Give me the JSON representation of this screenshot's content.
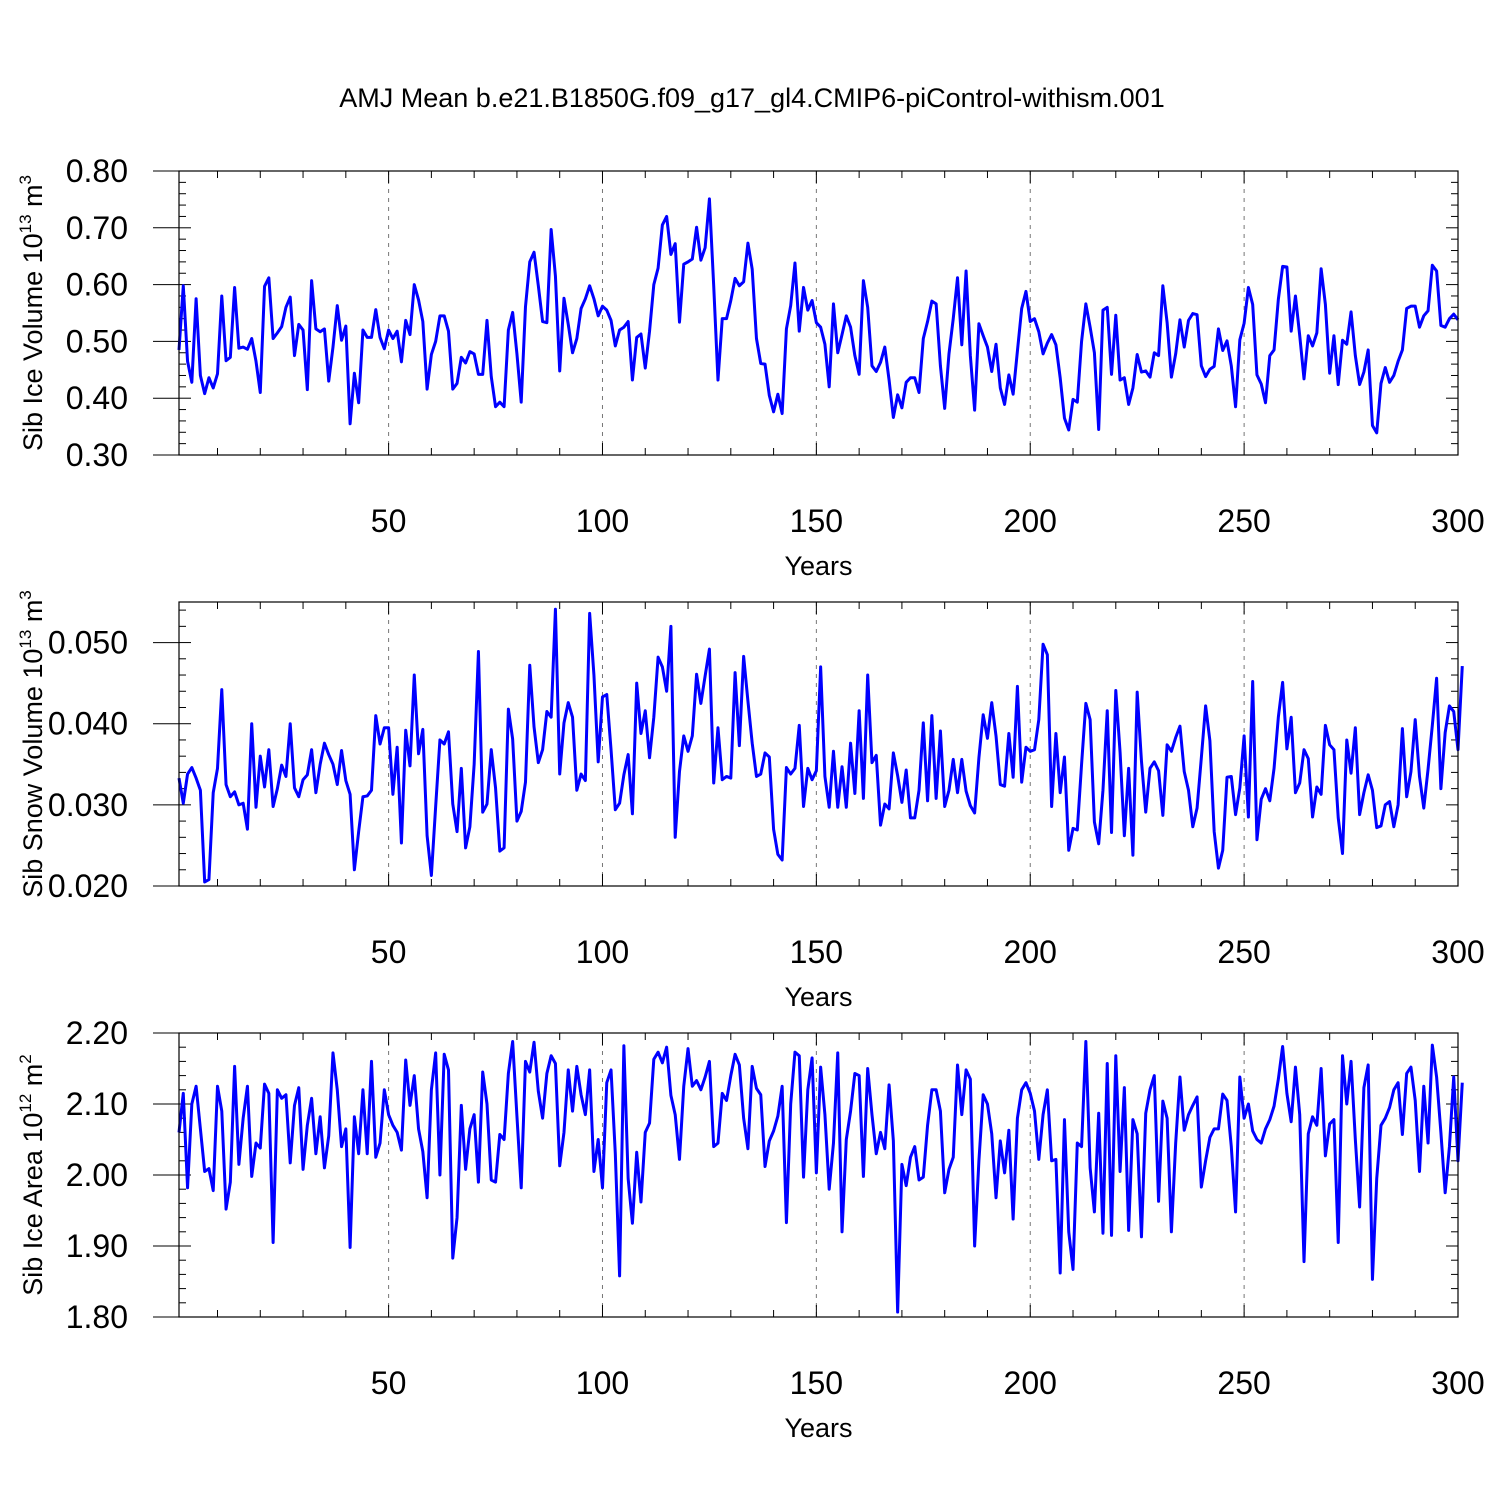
{
  "page": {
    "title": "AMJ Mean b.e21.B1850G.f09_g17_gl4.CMIP6-piControl-withism.001",
    "line_color": "#0000ff"
  },
  "chart_data": [
    {
      "type": "line",
      "ylabel": {
        "base": "Sib Ice Volume 10",
        "exp": "13",
        "unit": " m",
        "unit_exp": "3"
      },
      "xlabel": "Years",
      "xlim": [
        1,
        300
      ],
      "ylim": [
        0.3,
        0.8
      ],
      "xticks": [
        50,
        100,
        150,
        200,
        250,
        300
      ],
      "yticks": [
        0.3,
        0.4,
        0.5,
        0.6,
        0.7,
        0.8
      ],
      "ytick_labels": [
        "0.30",
        "0.40",
        "0.50",
        "0.60",
        "0.70",
        "0.80"
      ],
      "grid": "dashed vertical at x ticks",
      "series": [
        {
          "x_start": 1,
          "values": [
            0.485,
            0.598,
            0.465,
            0.428,
            0.575,
            0.44,
            0.408,
            0.436,
            0.418,
            0.443,
            0.58,
            0.466,
            0.472,
            0.595,
            0.488,
            0.49,
            0.486,
            0.505,
            0.465,
            0.41,
            0.597,
            0.612,
            0.505,
            0.515,
            0.526,
            0.56,
            0.578,
            0.475,
            0.53,
            0.52,
            0.415,
            0.607,
            0.522,
            0.517,
            0.522,
            0.43,
            0.49,
            0.563,
            0.502,
            0.527,
            0.355,
            0.444,
            0.392,
            0.52,
            0.507,
            0.507,
            0.556,
            0.507,
            0.487,
            0.52,
            0.505,
            0.518,
            0.464,
            0.537,
            0.512,
            0.6,
            0.573,
            0.535,
            0.416,
            0.477,
            0.5,
            0.545,
            0.545,
            0.518,
            0.416,
            0.426,
            0.472,
            0.462,
            0.482,
            0.478,
            0.442,
            0.442,
            0.537,
            0.438,
            0.385,
            0.393,
            0.385,
            0.52,
            0.551,
            0.478,
            0.393,
            0.561,
            0.64,
            0.657,
            0.598,
            0.535,
            0.533,
            0.697,
            0.615,
            0.448,
            0.576,
            0.53,
            0.48,
            0.505,
            0.558,
            0.575,
            0.598,
            0.575,
            0.545,
            0.562,
            0.555,
            0.537,
            0.492,
            0.52,
            0.525,
            0.535,
            0.432,
            0.507,
            0.513,
            0.453,
            0.518,
            0.6,
            0.629,
            0.705,
            0.72,
            0.653,
            0.672,
            0.534,
            0.636,
            0.64,
            0.645,
            0.701,
            0.643,
            0.665,
            0.751,
            0.598,
            0.432,
            0.54,
            0.54,
            0.572,
            0.611,
            0.598,
            0.605,
            0.673,
            0.627,
            0.505,
            0.461,
            0.46,
            0.405,
            0.376,
            0.407,
            0.373,
            0.522,
            0.563,
            0.638,
            0.518,
            0.595,
            0.555,
            0.572,
            0.533,
            0.525,
            0.495,
            0.42,
            0.566,
            0.48,
            0.512,
            0.545,
            0.525,
            0.475,
            0.442,
            0.607,
            0.56,
            0.457,
            0.447,
            0.463,
            0.49,
            0.432,
            0.366,
            0.406,
            0.383,
            0.428,
            0.436,
            0.436,
            0.41,
            0.505,
            0.535,
            0.571,
            0.566,
            0.457,
            0.382,
            0.478,
            0.54,
            0.612,
            0.494,
            0.624,
            0.475,
            0.379,
            0.531,
            0.51,
            0.49,
            0.447,
            0.495,
            0.418,
            0.389,
            0.441,
            0.407,
            0.483,
            0.558,
            0.588,
            0.535,
            0.54,
            0.517,
            0.478,
            0.497,
            0.512,
            0.494,
            0.436,
            0.365,
            0.344,
            0.398,
            0.393,
            0.5,
            0.566,
            0.525,
            0.48,
            0.345,
            0.555,
            0.56,
            0.442,
            0.546,
            0.432,
            0.436,
            0.389,
            0.418,
            0.477,
            0.446,
            0.448,
            0.437,
            0.48,
            0.475,
            0.598,
            0.533,
            0.437,
            0.478,
            0.538,
            0.49,
            0.537,
            0.549,
            0.547,
            0.457,
            0.438,
            0.451,
            0.456,
            0.522,
            0.484,
            0.501,
            0.457,
            0.385,
            0.503,
            0.532,
            0.595,
            0.565,
            0.441,
            0.425,
            0.392,
            0.475,
            0.485,
            0.574,
            0.632,
            0.631,
            0.518,
            0.58,
            0.51,
            0.434,
            0.51,
            0.492,
            0.515,
            0.628,
            0.565,
            0.444,
            0.51,
            0.424,
            0.502,
            0.495,
            0.552,
            0.475,
            0.424,
            0.446,
            0.485,
            0.352,
            0.339,
            0.426,
            0.454,
            0.428,
            0.44,
            0.465,
            0.485,
            0.558,
            0.562,
            0.562,
            0.525,
            0.545,
            0.554,
            0.634,
            0.624,
            0.528,
            0.525,
            0.54,
            0.548,
            0.538
          ]
        }
      ]
    },
    {
      "type": "line",
      "ylabel": {
        "base": "Sib Snow Volume 10",
        "exp": "13",
        "unit": " m",
        "unit_exp": "3"
      },
      "xlabel": "Years",
      "xlim": [
        1,
        300
      ],
      "ylim": [
        0.02,
        0.055
      ],
      "xticks": [
        50,
        100,
        150,
        200,
        250,
        300
      ],
      "yticks": [
        0.02,
        0.03,
        0.04,
        0.05
      ],
      "ytick_labels": [
        "0.020",
        "0.030",
        "0.040",
        "0.050"
      ],
      "grid": "dashed vertical at x ticks",
      "series": [
        {
          "x_start": 1,
          "values": [
            0.0333,
            0.0302,
            0.0338,
            0.0346,
            0.0333,
            0.0318,
            0.0205,
            0.0208,
            0.0315,
            0.0345,
            0.0442,
            0.0325,
            0.031,
            0.0316,
            0.03,
            0.0302,
            0.027,
            0.04,
            0.0297,
            0.036,
            0.0322,
            0.0368,
            0.0298,
            0.032,
            0.0349,
            0.0335,
            0.04,
            0.0321,
            0.031,
            0.0331,
            0.0337,
            0.0368,
            0.0315,
            0.035,
            0.0376,
            0.0362,
            0.035,
            0.0325,
            0.0367,
            0.033,
            0.0313,
            0.022,
            0.0267,
            0.031,
            0.0311,
            0.0318,
            0.041,
            0.0375,
            0.0395,
            0.0395,
            0.0313,
            0.0371,
            0.0253,
            0.0392,
            0.0348,
            0.046,
            0.0363,
            0.0393,
            0.0262,
            0.0213,
            0.0298,
            0.038,
            0.0375,
            0.039,
            0.0301,
            0.0267,
            0.0345,
            0.0247,
            0.0273,
            0.035,
            0.0489,
            0.0291,
            0.0301,
            0.0368,
            0.0321,
            0.0243,
            0.0247,
            0.0418,
            0.0381,
            0.028,
            0.0292,
            0.0328,
            0.0472,
            0.0396,
            0.0352,
            0.0368,
            0.0415,
            0.0408,
            0.0541,
            0.0338,
            0.0401,
            0.0426,
            0.0408,
            0.0318,
            0.0338,
            0.033,
            0.0536,
            0.046,
            0.0353,
            0.0433,
            0.0436,
            0.0368,
            0.0294,
            0.0302,
            0.0337,
            0.0362,
            0.0289,
            0.045,
            0.0388,
            0.0416,
            0.0358,
            0.0408,
            0.0482,
            0.047,
            0.044,
            0.052,
            0.026,
            0.0341,
            0.0385,
            0.0366,
            0.0385,
            0.0461,
            0.0425,
            0.0459,
            0.0492,
            0.0327,
            0.0395,
            0.0331,
            0.0335,
            0.0333,
            0.0463,
            0.0373,
            0.0483,
            0.0428,
            0.0376,
            0.0335,
            0.0338,
            0.0364,
            0.0359,
            0.027,
            0.0239,
            0.0232,
            0.0346,
            0.0338,
            0.0345,
            0.0398,
            0.0298,
            0.0345,
            0.0331,
            0.0342,
            0.047,
            0.0335,
            0.0297,
            0.0366,
            0.0297,
            0.0347,
            0.0297,
            0.0376,
            0.0314,
            0.0416,
            0.0308,
            0.046,
            0.0352,
            0.0361,
            0.0275,
            0.0301,
            0.0295,
            0.0364,
            0.0336,
            0.0303,
            0.0343,
            0.0284,
            0.0284,
            0.0318,
            0.0401,
            0.0305,
            0.041,
            0.0308,
            0.0391,
            0.0298,
            0.0318,
            0.0356,
            0.0315,
            0.0356,
            0.0317,
            0.0299,
            0.029,
            0.0358,
            0.0411,
            0.0382,
            0.0426,
            0.0385,
            0.0325,
            0.0323,
            0.0388,
            0.0334,
            0.0446,
            0.0328,
            0.0371,
            0.0366,
            0.0368,
            0.0405,
            0.0498,
            0.0485,
            0.0298,
            0.0388,
            0.0315,
            0.0359,
            0.0244,
            0.0271,
            0.0269,
            0.035,
            0.0425,
            0.0405,
            0.0279,
            0.0252,
            0.0318,
            0.0416,
            0.0266,
            0.0441,
            0.0365,
            0.0262,
            0.0345,
            0.0238,
            0.0439,
            0.0354,
            0.0291,
            0.0345,
            0.0353,
            0.0342,
            0.0287,
            0.0374,
            0.0366,
            0.0383,
            0.0397,
            0.0341,
            0.0318,
            0.0273,
            0.0296,
            0.0358,
            0.0422,
            0.0379,
            0.0267,
            0.0222,
            0.0244,
            0.0334,
            0.0335,
            0.0288,
            0.0321,
            0.0385,
            0.0285,
            0.0452,
            0.0257,
            0.0307,
            0.032,
            0.0305,
            0.0345,
            0.0408,
            0.0451,
            0.0369,
            0.0408,
            0.0315,
            0.0327,
            0.0368,
            0.0357,
            0.0285,
            0.0322,
            0.0313,
            0.0398,
            0.0374,
            0.0368,
            0.0284,
            0.024,
            0.038,
            0.0339,
            0.0395,
            0.0288,
            0.0315,
            0.0337,
            0.0318,
            0.0272,
            0.0274,
            0.03,
            0.0304,
            0.0273,
            0.03,
            0.0394,
            0.031,
            0.0341,
            0.0405,
            0.0335,
            0.0296,
            0.0344,
            0.0398,
            0.0456,
            0.032,
            0.0389,
            0.0422,
            0.0415,
            0.0368,
            0.0471
          ]
        }
      ]
    },
    {
      "type": "line",
      "ylabel": {
        "base": "Sib Ice Area 10",
        "exp": "12",
        "unit": " m",
        "unit_exp": "2"
      },
      "xlabel": "Years",
      "xlim": [
        1,
        300
      ],
      "ylim": [
        1.8,
        2.2
      ],
      "xticks": [
        50,
        100,
        150,
        200,
        250,
        300
      ],
      "yticks": [
        1.8,
        1.9,
        2.0,
        2.1,
        2.2
      ],
      "ytick_labels": [
        "1.80",
        "1.90",
        "2.00",
        "2.10",
        "2.20"
      ],
      "grid": "dashed vertical at x ticks",
      "series": [
        {
          "x_start": 1,
          "values": [
            2.06,
            2.115,
            1.982,
            2.1,
            2.125,
            2.065,
            2.005,
            2.009,
            1.978,
            2.125,
            2.09,
            1.952,
            1.99,
            2.153,
            2.015,
            2.08,
            2.125,
            1.998,
            2.045,
            2.038,
            2.128,
            2.115,
            1.905,
            2.12,
            2.108,
            2.113,
            2.017,
            2.098,
            2.123,
            2.008,
            2.07,
            2.108,
            2.03,
            2.082,
            2.01,
            2.055,
            2.172,
            2.12,
            2.04,
            2.065,
            1.898,
            2.082,
            2.03,
            2.12,
            2.03,
            2.16,
            2.025,
            2.045,
            2.12,
            2.085,
            2.07,
            2.06,
            2.035,
            2.162,
            2.098,
            2.14,
            2.065,
            2.033,
            1.968,
            2.12,
            2.172,
            2.0,
            2.17,
            2.148,
            1.883,
            1.94,
            2.098,
            2.008,
            2.065,
            2.085,
            1.99,
            2.145,
            2.1,
            1.993,
            1.99,
            2.057,
            2.05,
            2.143,
            2.188,
            2.083,
            1.982,
            2.16,
            2.145,
            2.187,
            2.118,
            2.08,
            2.143,
            2.168,
            2.157,
            2.013,
            2.06,
            2.148,
            2.09,
            2.153,
            2.113,
            2.085,
            2.148,
            2.005,
            2.05,
            1.982,
            2.13,
            2.148,
            2.03,
            1.858,
            2.182,
            1.995,
            1.932,
            2.032,
            1.962,
            2.06,
            2.073,
            2.163,
            2.173,
            2.158,
            2.18,
            2.112,
            2.085,
            2.022,
            2.125,
            2.178,
            2.125,
            2.133,
            2.12,
            2.138,
            2.16,
            2.04,
            2.045,
            2.115,
            2.105,
            2.14,
            2.17,
            2.155,
            2.08,
            2.037,
            2.153,
            2.122,
            2.113,
            2.012,
            2.048,
            2.062,
            2.083,
            2.125,
            1.933,
            2.1,
            2.173,
            2.168,
            1.997,
            2.12,
            2.165,
            2.003,
            2.152,
            2.085,
            1.98,
            2.045,
            2.172,
            1.92,
            2.05,
            2.09,
            2.143,
            2.14,
            1.998,
            2.15,
            2.085,
            2.03,
            2.06,
            2.037,
            2.127,
            2.048,
            1.807,
            2.015,
            1.985,
            2.025,
            2.04,
            1.993,
            1.997,
            2.07,
            2.12,
            2.12,
            2.09,
            1.975,
            2.008,
            2.025,
            2.155,
            2.085,
            2.148,
            2.135,
            1.9,
            2.02,
            2.113,
            2.1,
            2.058,
            1.968,
            2.048,
            2.003,
            2.063,
            1.938,
            2.08,
            2.12,
            2.13,
            2.115,
            2.09,
            2.022,
            2.085,
            2.12,
            2.02,
            2.022,
            1.862,
            2.078,
            1.92,
            1.867,
            2.045,
            2.04,
            2.188,
            2.01,
            1.948,
            2.087,
            1.918,
            2.157,
            1.915,
            2.168,
            2.005,
            2.123,
            1.922,
            2.078,
            2.058,
            1.913,
            2.087,
            2.12,
            2.14,
            1.963,
            2.104,
            2.08,
            1.92,
            2.045,
            2.138,
            2.063,
            2.085,
            2.098,
            2.11,
            1.983,
            2.02,
            2.053,
            2.065,
            2.065,
            2.114,
            2.105,
            2.04,
            1.948,
            2.138,
            2.08,
            2.1,
            2.062,
            2.05,
            2.045,
            2.065,
            2.078,
            2.097,
            2.135,
            2.181,
            2.115,
            2.075,
            2.152,
            2.085,
            1.878,
            2.058,
            2.082,
            2.07,
            2.15,
            2.027,
            2.072,
            2.078,
            1.905,
            2.168,
            2.1,
            2.16,
            2.05,
            1.955,
            2.123,
            2.155,
            1.853,
            1.995,
            2.07,
            2.08,
            2.095,
            2.12,
            2.13,
            2.057,
            2.143,
            2.152,
            2.105,
            2.005,
            2.125,
            2.045,
            2.183,
            2.138,
            2.06,
            1.975,
            2.04,
            2.138,
            2.02,
            2.13
          ]
        }
      ]
    }
  ]
}
